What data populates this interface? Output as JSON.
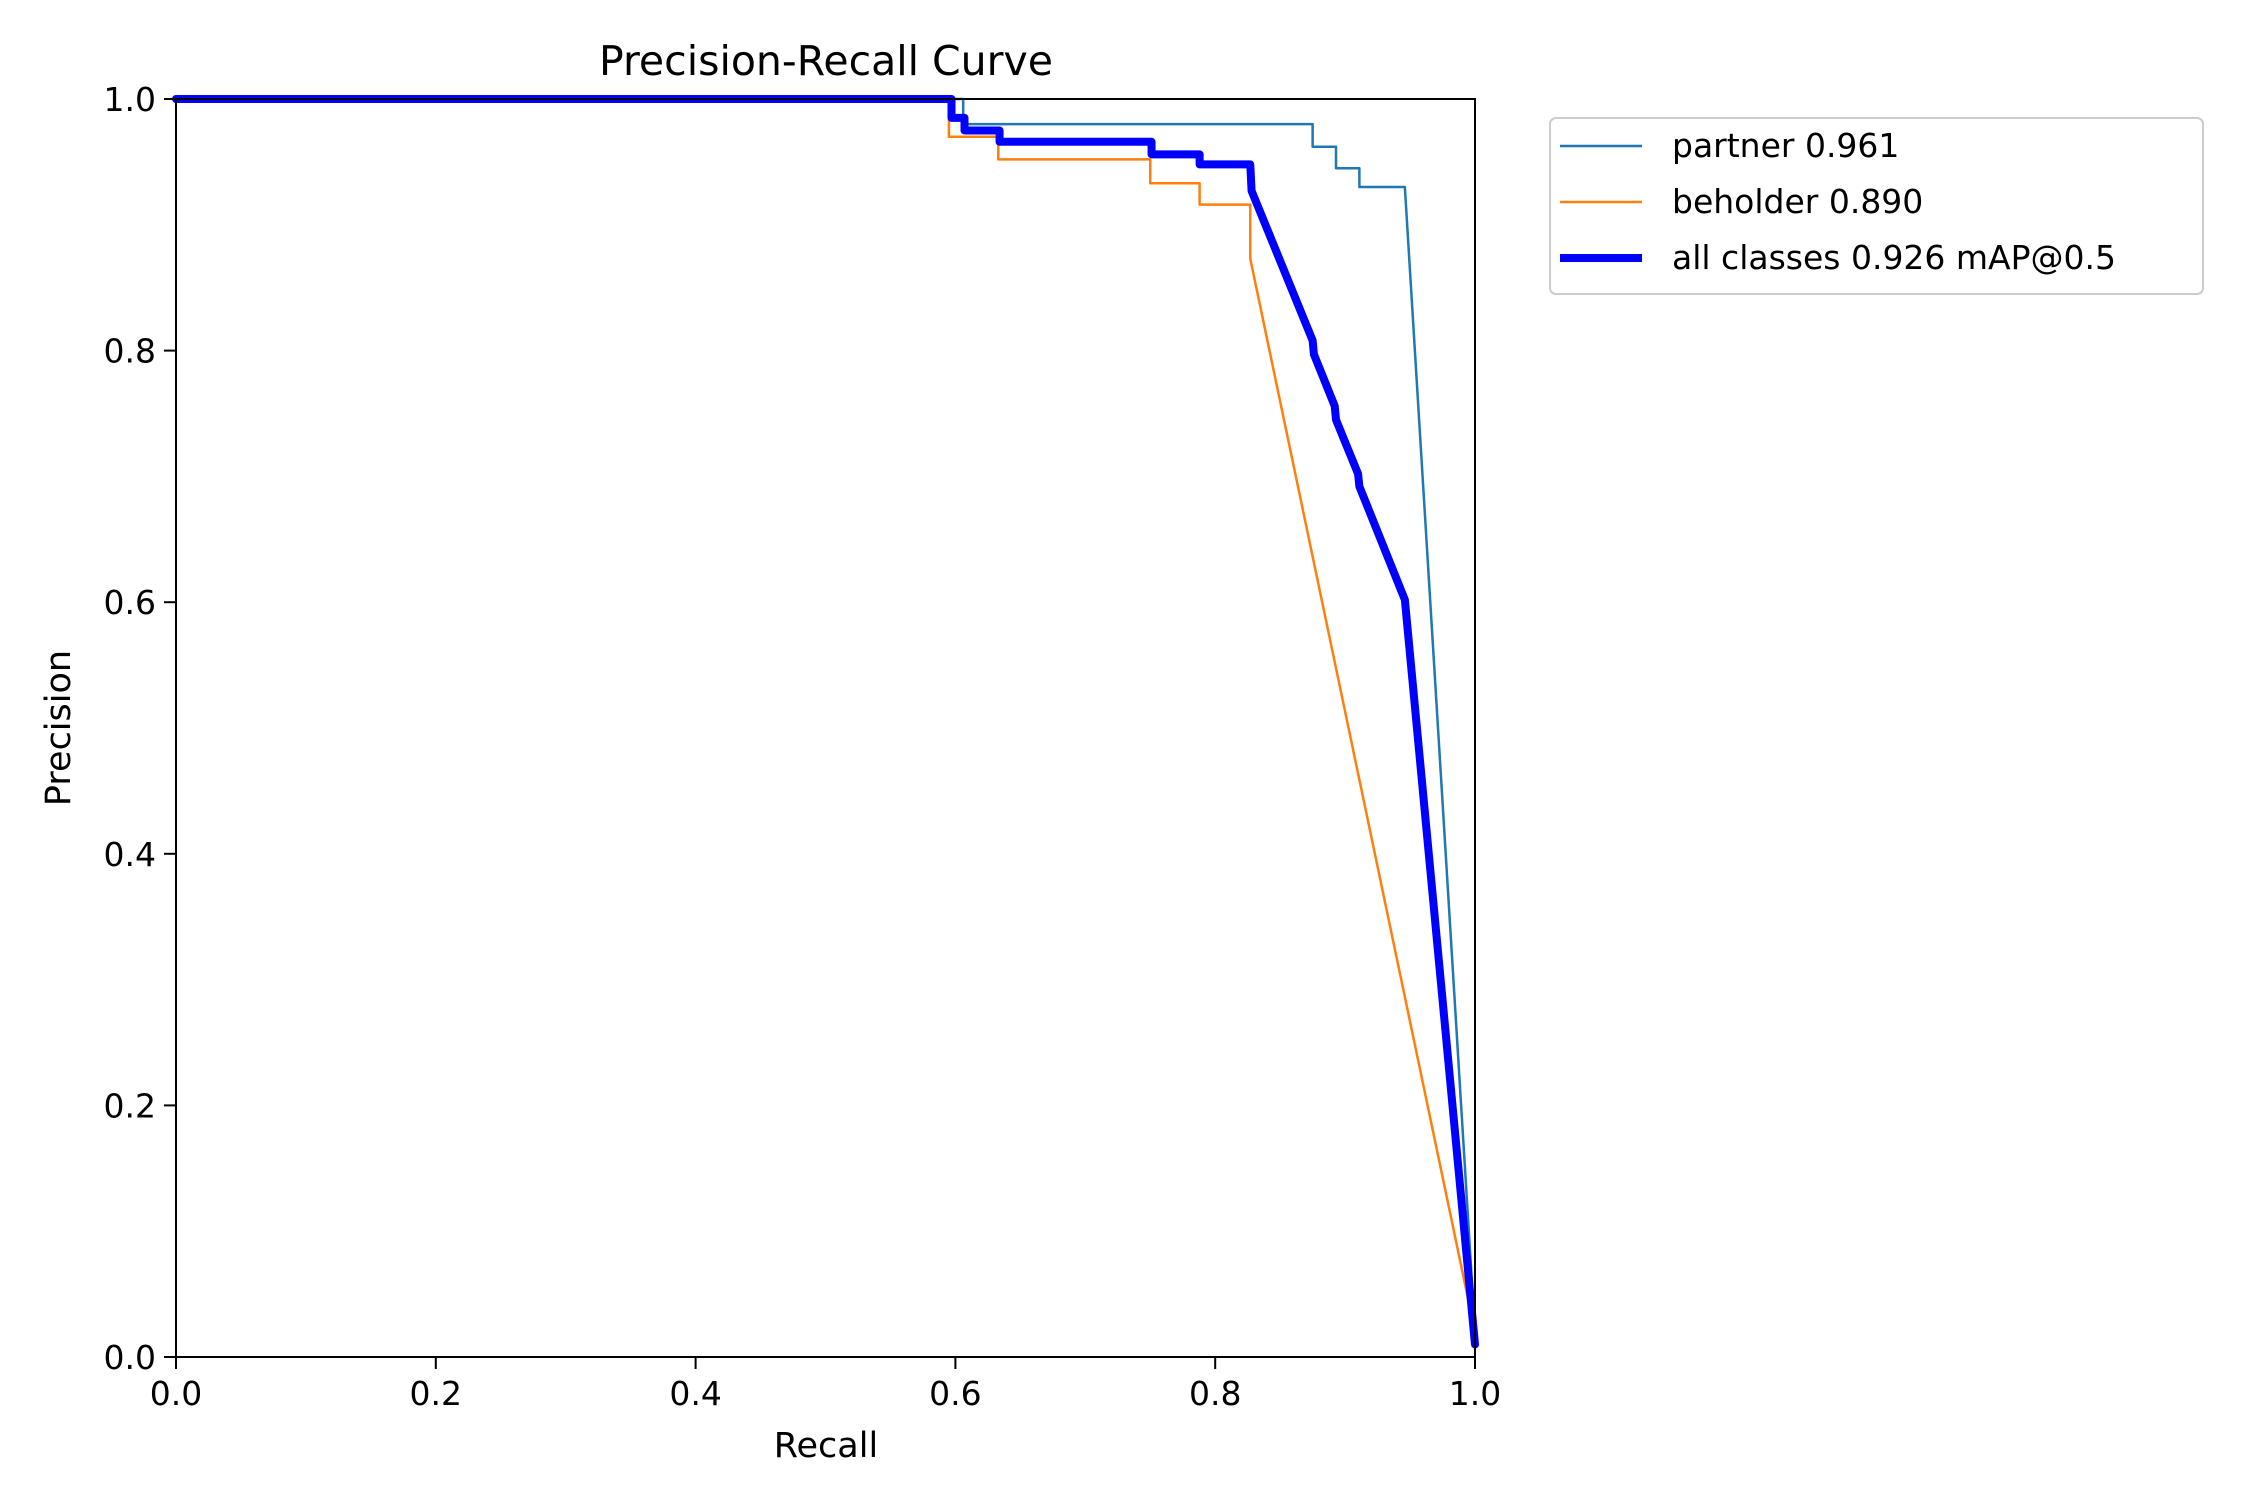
{
  "chart_data": {
    "type": "line",
    "title": "Precision-Recall Curve",
    "xlabel": "Recall",
    "ylabel": "Precision",
    "xlim": [
      0,
      1
    ],
    "ylim": [
      0,
      1
    ],
    "xticks": [
      "0.0",
      "0.2",
      "0.4",
      "0.6",
      "0.8",
      "1.0"
    ],
    "yticks": [
      "0.0",
      "0.2",
      "0.4",
      "0.6",
      "0.8",
      "1.0"
    ],
    "grid": false,
    "legend_position": "outside-top-right",
    "series": [
      {
        "name": "partner 0.961",
        "color": "#1f77b4",
        "emphasis": "thin",
        "points": [
          [
            0.0,
            1.0
          ],
          [
            0.6,
            1.0
          ],
          [
            0.606,
            1.0
          ],
          [
            0.606,
            0.98
          ],
          [
            0.875,
            0.98
          ],
          [
            0.875,
            0.962
          ],
          [
            0.893,
            0.962
          ],
          [
            0.893,
            0.945
          ],
          [
            0.911,
            0.945
          ],
          [
            0.911,
            0.93
          ],
          [
            0.946,
            0.93
          ],
          [
            1.0,
            0.02
          ]
        ]
      },
      {
        "name": "beholder 0.890",
        "color": "#ff7f0e",
        "emphasis": "thin",
        "points": [
          [
            0.0,
            1.0
          ],
          [
            0.595,
            1.0
          ],
          [
            0.595,
            0.97
          ],
          [
            0.633,
            0.97
          ],
          [
            0.633,
            0.952
          ],
          [
            0.75,
            0.952
          ],
          [
            0.75,
            0.933
          ],
          [
            0.788,
            0.933
          ],
          [
            0.788,
            0.916
          ],
          [
            0.827,
            0.916
          ],
          [
            0.827,
            0.873
          ],
          [
            1.0,
            0.02
          ]
        ]
      },
      {
        "name": "all classes 0.926 mAP@0.5",
        "color": "#0000ff",
        "emphasis": "thick",
        "points": [
          [
            0.0,
            1.0
          ],
          [
            0.597,
            1.0
          ],
          [
            0.597,
            0.985
          ],
          [
            0.607,
            0.985
          ],
          [
            0.607,
            0.975
          ],
          [
            0.634,
            0.975
          ],
          [
            0.634,
            0.966
          ],
          [
            0.751,
            0.966
          ],
          [
            0.751,
            0.956
          ],
          [
            0.788,
            0.956
          ],
          [
            0.788,
            0.948
          ],
          [
            0.827,
            0.948
          ],
          [
            0.828,
            0.927
          ],
          [
            0.875,
            0.808
          ],
          [
            0.876,
            0.797
          ],
          [
            0.892,
            0.756
          ],
          [
            0.893,
            0.745
          ],
          [
            0.91,
            0.702
          ],
          [
            0.911,
            0.692
          ],
          [
            0.946,
            0.602
          ],
          [
            1.0,
            0.01
          ]
        ]
      }
    ]
  }
}
